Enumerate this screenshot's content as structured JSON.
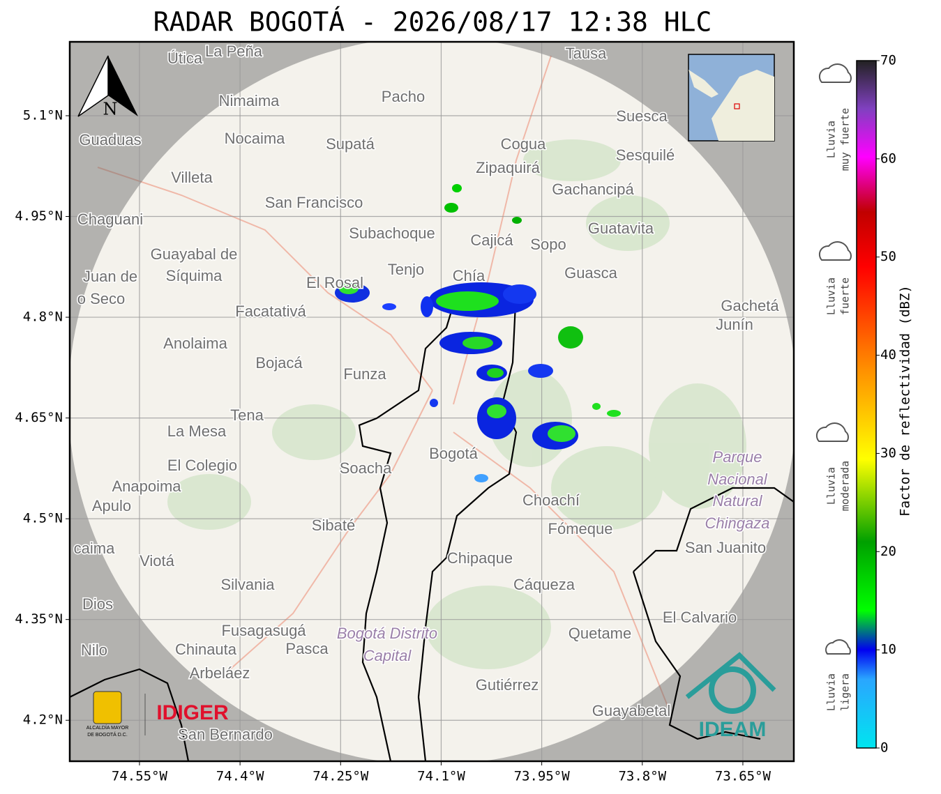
{
  "title": "RADAR BOGOTÁ - 2026/08/17 12:38 HLC",
  "map": {
    "xlim": [
      -74.654,
      -73.574
    ],
    "ylim": [
      4.139,
      5.21
    ],
    "lat_ticks": [
      {
        "value": 5.1,
        "label": "5.1°N"
      },
      {
        "value": 4.95,
        "label": "4.95°N"
      },
      {
        "value": 4.8,
        "label": "4.8°N"
      },
      {
        "value": 4.65,
        "label": "4.65°N"
      },
      {
        "value": 4.5,
        "label": "4.5°N"
      },
      {
        "value": 4.35,
        "label": "4.35°N"
      },
      {
        "value": 4.2,
        "label": "4.2°N"
      }
    ],
    "lon_ticks": [
      {
        "value": -74.55,
        "label": "74.55°W"
      },
      {
        "value": -74.4,
        "label": "74.4°W"
      },
      {
        "value": -74.25,
        "label": "74.25°W"
      },
      {
        "value": -74.1,
        "label": "74.1°W"
      },
      {
        "value": -73.95,
        "label": "73.95°W"
      },
      {
        "value": -73.8,
        "label": "73.8°W"
      },
      {
        "value": -73.65,
        "label": "73.65°W"
      }
    ],
    "north": "N",
    "places": [
      "Útica",
      "La Peña",
      "Tausa",
      "Pacho",
      "Nimaima",
      "Suesca",
      "Guaduas",
      "Nocaima",
      "Supatá",
      "Cogua",
      "Sesquilé",
      "Zipaquirá",
      "Villeta",
      "Gachancipá",
      "San Francisco",
      "Chaguani",
      "Guatavita",
      "Subachoque",
      "Cajicá",
      "Sopo",
      "Guayabal de",
      "Síquima",
      "Tenjo",
      "Chía",
      "Guasca",
      "Juan de",
      "o Seco",
      "El Rosal",
      "Gachetá",
      "Junín",
      "Facatativá",
      "Anolaima",
      "Bojacá",
      "Funza",
      "Tena",
      "La Mesa",
      "El Colegio",
      "Soacha",
      "Bogotá",
      "Anapoima",
      "Apulo",
      "Choachí",
      "Parque",
      "Nacional",
      "Natural",
      "Chingaza",
      "Sibaté",
      "Fómeque",
      "San Juanito",
      "caima",
      "Viotá",
      "Chipaque",
      "Silvania",
      "Cáqueza",
      "Dios",
      "El Calvario",
      "Fusagasugá",
      "Bogotá Distrito",
      "Capital",
      "Quetame",
      "Nilo",
      "Chinauta",
      "Pasca",
      "Arbeláez",
      "Gutiérrez",
      "Guayabetal",
      "San Bernardo"
    ],
    "logos": [
      "ALCALDÍA MAYOR",
      "DE BOGOTÁ D.C.",
      "IDIGER",
      "IDEAM"
    ]
  },
  "colorbar": {
    "label": "Factor de reflectividad (dBZ)",
    "range": [
      0,
      70
    ],
    "ticks": [
      0,
      10,
      20,
      30,
      40,
      50,
      60,
      70
    ],
    "categories": [
      [
        "Lluvia",
        "muy fuerte"
      ],
      [
        "Lluvia",
        "fuerte"
      ],
      [
        "Lluvia",
        "moderada"
      ],
      [
        "Lluvia",
        "ligera"
      ]
    ]
  }
}
